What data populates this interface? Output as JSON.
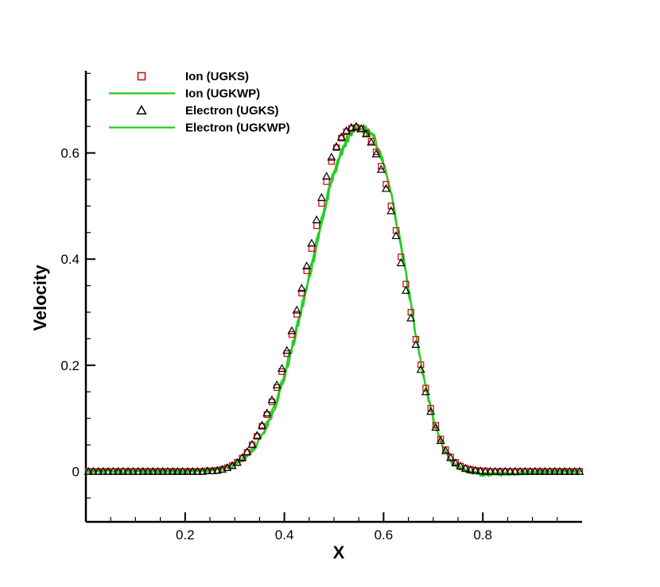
{
  "chart_data": {
    "type": "line",
    "title": "",
    "xlabel": "X",
    "ylabel": "Velocity",
    "xlim": [
      0.0,
      1.0
    ],
    "ylim": [
      -0.095,
      0.755
    ],
    "xticks": [
      0.2,
      0.4,
      0.6,
      0.8
    ],
    "xtick_labels": [
      "0.2",
      "0.4",
      "0.6",
      "0.8"
    ],
    "yticks": [
      0,
      0.2,
      0.4,
      0.6
    ],
    "ytick_labels": [
      "0",
      "0.2",
      "0.4",
      "0.6"
    ],
    "grid": false,
    "legend_position": "top-left",
    "series": [
      {
        "name": "Ion (UGKS)",
        "style": "markers",
        "marker": "square",
        "color": "#cc1111",
        "x": [
          0.005,
          0.015,
          0.025,
          0.035,
          0.045,
          0.055,
          0.065,
          0.075,
          0.085,
          0.095,
          0.105,
          0.115,
          0.125,
          0.135,
          0.145,
          0.155,
          0.165,
          0.175,
          0.185,
          0.195,
          0.205,
          0.215,
          0.225,
          0.235,
          0.245,
          0.255,
          0.265,
          0.275,
          0.285,
          0.295,
          0.305,
          0.315,
          0.325,
          0.335,
          0.345,
          0.355,
          0.365,
          0.375,
          0.385,
          0.395,
          0.405,
          0.415,
          0.425,
          0.435,
          0.445,
          0.455,
          0.465,
          0.475,
          0.485,
          0.495,
          0.505,
          0.515,
          0.525,
          0.535,
          0.545,
          0.555,
          0.565,
          0.575,
          0.585,
          0.595,
          0.605,
          0.615,
          0.625,
          0.635,
          0.645,
          0.655,
          0.665,
          0.675,
          0.685,
          0.695,
          0.705,
          0.715,
          0.725,
          0.735,
          0.745,
          0.755,
          0.765,
          0.775,
          0.785,
          0.795,
          0.805,
          0.815,
          0.825,
          0.835,
          0.845,
          0.855,
          0.865,
          0.875,
          0.885,
          0.895,
          0.905,
          0.915,
          0.925,
          0.935,
          0.945,
          0.955,
          0.965,
          0.975,
          0.985,
          0.995
        ],
        "y": [
          0.0,
          0.0,
          0.0,
          0.0,
          0.0,
          0.0,
          0.0,
          0.0,
          0.0,
          0.0,
          0.0,
          0.0,
          0.0,
          0.0,
          0.0,
          0.0,
          0.0,
          0.0,
          0.0,
          0.0,
          0.0,
          0.0,
          0.0,
          0.0,
          0.001,
          0.001,
          0.002,
          0.004,
          0.007,
          0.011,
          0.017,
          0.025,
          0.036,
          0.05,
          0.066,
          0.085,
          0.107,
          0.131,
          0.158,
          0.188,
          0.222,
          0.258,
          0.296,
          0.336,
          0.378,
          0.42,
          0.463,
          0.505,
          0.546,
          0.584,
          0.61,
          0.628,
          0.64,
          0.646,
          0.648,
          0.645,
          0.637,
          0.622,
          0.602,
          0.575,
          0.541,
          0.5,
          0.454,
          0.404,
          0.353,
          0.3,
          0.249,
          0.201,
          0.157,
          0.119,
          0.087,
          0.061,
          0.041,
          0.027,
          0.017,
          0.01,
          0.006,
          0.004,
          0.002,
          0.001,
          0.001,
          0.0,
          0.0,
          0.0,
          0.0,
          0.0,
          0.0,
          0.0,
          0.0,
          0.0,
          0.0,
          0.0,
          0.0,
          0.0,
          0.0,
          0.0,
          0.0,
          0.0,
          0.0,
          0.0
        ]
      },
      {
        "name": "Ion (UGKWP)",
        "style": "line",
        "color": "#22cc22",
        "x": [
          0.0,
          0.05,
          0.1,
          0.15,
          0.2,
          0.25,
          0.28,
          0.3,
          0.32,
          0.34,
          0.36,
          0.38,
          0.4,
          0.42,
          0.44,
          0.46,
          0.48,
          0.5,
          0.52,
          0.54,
          0.56,
          0.58,
          0.6,
          0.62,
          0.64,
          0.66,
          0.68,
          0.7,
          0.72,
          0.74,
          0.76,
          0.8,
          0.85,
          0.9,
          0.95,
          1.0
        ],
        "y": [
          0.0,
          0.0,
          0.0,
          0.0,
          0.0,
          0.002,
          0.006,
          0.012,
          0.024,
          0.043,
          0.074,
          0.118,
          0.175,
          0.245,
          0.322,
          0.404,
          0.486,
          0.56,
          0.612,
          0.64,
          0.645,
          0.628,
          0.58,
          0.5,
          0.398,
          0.285,
          0.18,
          0.098,
          0.044,
          0.014,
          0.002,
          -0.006,
          -0.004,
          -0.002,
          0.0,
          0.0
        ]
      },
      {
        "name": "Electron (UGKS)",
        "style": "markers",
        "marker": "triangle",
        "color": "#000000",
        "x": [
          0.005,
          0.015,
          0.025,
          0.035,
          0.045,
          0.055,
          0.065,
          0.075,
          0.085,
          0.095,
          0.105,
          0.115,
          0.125,
          0.135,
          0.145,
          0.155,
          0.165,
          0.175,
          0.185,
          0.195,
          0.205,
          0.215,
          0.225,
          0.235,
          0.245,
          0.255,
          0.265,
          0.275,
          0.285,
          0.295,
          0.305,
          0.315,
          0.325,
          0.335,
          0.345,
          0.355,
          0.365,
          0.375,
          0.385,
          0.395,
          0.405,
          0.415,
          0.425,
          0.435,
          0.445,
          0.455,
          0.465,
          0.475,
          0.485,
          0.495,
          0.505,
          0.515,
          0.525,
          0.535,
          0.545,
          0.555,
          0.565,
          0.575,
          0.585,
          0.595,
          0.605,
          0.615,
          0.625,
          0.635,
          0.645,
          0.655,
          0.665,
          0.675,
          0.685,
          0.695,
          0.705,
          0.715,
          0.725,
          0.735,
          0.745,
          0.755,
          0.765,
          0.775,
          0.785,
          0.795,
          0.805,
          0.815,
          0.825,
          0.835,
          0.845,
          0.855,
          0.865,
          0.875,
          0.885,
          0.895,
          0.905,
          0.915,
          0.925,
          0.935,
          0.945,
          0.955,
          0.965,
          0.975,
          0.985,
          0.995
        ],
        "y": [
          0.0,
          0.0,
          0.0,
          0.0,
          0.0,
          0.0,
          0.0,
          0.0,
          0.0,
          0.0,
          0.0,
          0.0,
          0.0,
          0.0,
          0.0,
          0.0,
          0.0,
          0.0,
          0.0,
          0.0,
          0.0,
          0.0,
          0.0,
          0.0,
          0.001,
          0.001,
          0.002,
          0.004,
          0.007,
          0.011,
          0.017,
          0.026,
          0.037,
          0.051,
          0.068,
          0.087,
          0.11,
          0.135,
          0.163,
          0.194,
          0.228,
          0.265,
          0.304,
          0.345,
          0.387,
          0.43,
          0.474,
          0.516,
          0.556,
          0.592,
          0.612,
          0.63,
          0.642,
          0.648,
          0.65,
          0.646,
          0.636,
          0.62,
          0.598,
          0.569,
          0.533,
          0.491,
          0.444,
          0.393,
          0.341,
          0.289,
          0.239,
          0.192,
          0.15,
          0.113,
          0.083,
          0.058,
          0.039,
          0.026,
          0.016,
          0.01,
          0.006,
          0.003,
          0.002,
          0.001,
          0.0,
          0.0,
          0.0,
          0.0,
          0.0,
          0.0,
          0.0,
          0.0,
          0.0,
          0.0,
          0.0,
          0.0,
          0.0,
          0.0,
          0.0,
          0.0,
          0.0,
          0.0,
          0.0,
          0.0
        ]
      },
      {
        "name": "Electron (UGKWP)",
        "style": "line",
        "color": "#22cc22",
        "x": [
          0.0,
          0.05,
          0.1,
          0.15,
          0.2,
          0.25,
          0.28,
          0.3,
          0.32,
          0.34,
          0.36,
          0.38,
          0.4,
          0.42,
          0.44,
          0.46,
          0.48,
          0.5,
          0.52,
          0.54,
          0.56,
          0.58,
          0.6,
          0.62,
          0.64,
          0.66,
          0.68,
          0.7,
          0.72,
          0.74,
          0.76,
          0.8,
          0.85,
          0.9,
          0.95,
          1.0
        ],
        "y": [
          0.0,
          0.0,
          0.0,
          0.0,
          0.0,
          0.002,
          0.007,
          0.013,
          0.026,
          0.046,
          0.078,
          0.124,
          0.182,
          0.252,
          0.33,
          0.412,
          0.494,
          0.566,
          0.618,
          0.644,
          0.648,
          0.63,
          0.582,
          0.502,
          0.4,
          0.287,
          0.182,
          0.1,
          0.045,
          0.015,
          0.003,
          -0.005,
          -0.003,
          -0.002,
          0.0,
          0.0
        ]
      }
    ]
  }
}
